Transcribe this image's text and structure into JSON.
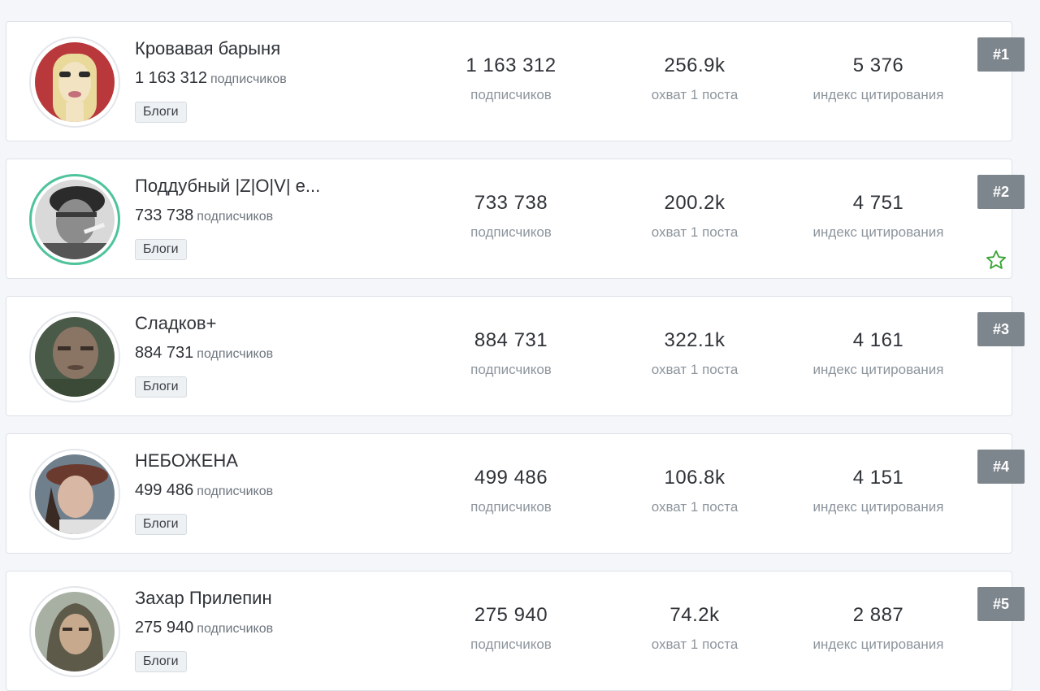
{
  "channels": [
    {
      "rank": "#1",
      "name": "Кровавая барыня",
      "subs": "1 163 312",
      "subs_word": "подписчиков",
      "category": "Блоги",
      "subscribers": "1 163 312",
      "subscribers_label": "подписчиков",
      "reach": "256.9k",
      "reach_label": "охват 1 поста",
      "citation": "5 376",
      "citation_label": "индекс цитирования"
    },
    {
      "rank": "#2",
      "name": "Поддубный |Z|O|V| e...",
      "subs": "733 738",
      "subs_word": "подписчиков",
      "category": "Блоги",
      "subscribers": "733 738",
      "subscribers_label": "подписчиков",
      "reach": "200.2k",
      "reach_label": "охват 1 поста",
      "citation": "4 751",
      "citation_label": "индекс цитирования",
      "favorite": true
    },
    {
      "rank": "#3",
      "name": "Сладков+",
      "subs": "884 731",
      "subs_word": "подписчиков",
      "category": "Блоги",
      "subscribers": "884 731",
      "subscribers_label": "подписчиков",
      "reach": "322.1k",
      "reach_label": "охват 1 поста",
      "citation": "4 161",
      "citation_label": "индекс цитирования"
    },
    {
      "rank": "#4",
      "name": "НЕБОЖЕНА",
      "subs": "499 486",
      "subs_word": "подписчиков",
      "category": "Блоги",
      "subscribers": "499 486",
      "subscribers_label": "подписчиков",
      "reach": "106.8k",
      "reach_label": "охват 1 поста",
      "citation": "4 151",
      "citation_label": "индекс цитирования"
    },
    {
      "rank": "#5",
      "name": "Захар Прилепин",
      "subs": "275 940",
      "subs_word": "подписчиков",
      "category": "Блоги",
      "subscribers": "275 940",
      "subscribers_label": "подписчиков",
      "reach": "74.2k",
      "reach_label": "охват 1 поста",
      "citation": "2 887",
      "citation_label": "индекс цитирования"
    }
  ],
  "colors": {
    "accent_ring": "#4fc39a",
    "rank_badge": "#7e868d",
    "star": "#3aa537"
  },
  "icons": {
    "favorite": "star-outline-icon"
  }
}
